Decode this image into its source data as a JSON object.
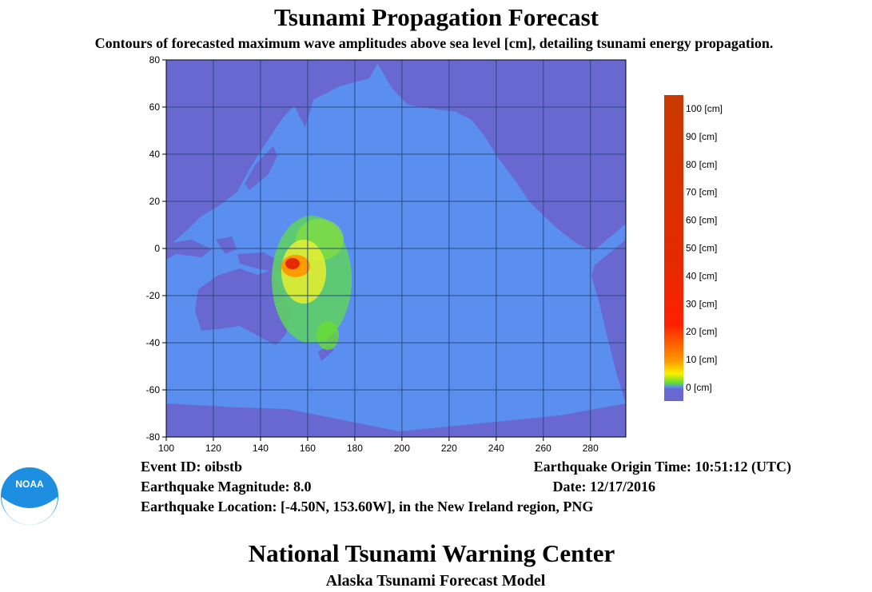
{
  "title": "Tsunami Propagation Forecast",
  "subtitle": "Contours of forecasted maximum wave amplitudes above sea level [cm], detailing tsunami energy propagation.",
  "map": {
    "xlim": [
      100,
      295
    ],
    "ylim": [
      -80,
      80
    ],
    "xticks": [
      100,
      120,
      140,
      160,
      180,
      200,
      220,
      240,
      260,
      280
    ],
    "yticks": [
      -80,
      -60,
      -40,
      -20,
      0,
      20,
      40,
      60,
      80
    ]
  },
  "colorbar": {
    "labels": [
      "100 [cm]",
      "90 [cm]",
      "80 [cm]",
      "70 [cm]",
      "60 [cm]",
      "50 [cm]",
      "40 [cm]",
      "30 [cm]",
      "20 [cm]",
      "10 [cm]",
      "0 [cm]"
    ]
  },
  "logo": "NOAA",
  "info": {
    "event_id": "Event ID: oibstb",
    "origin_time": "Earthquake Origin Time: 10:51:12 (UTC)",
    "magnitude": "Earthquake Magnitude: 8.0",
    "date": "Date: 12/17/2016",
    "location": "Earthquake Location: [-4.50N, 153.60W], in the New Ireland region, PNG"
  },
  "footer": {
    "center": "National Tsunami Warning Center",
    "model": "Alaska Tsunami Forecast Model"
  }
}
